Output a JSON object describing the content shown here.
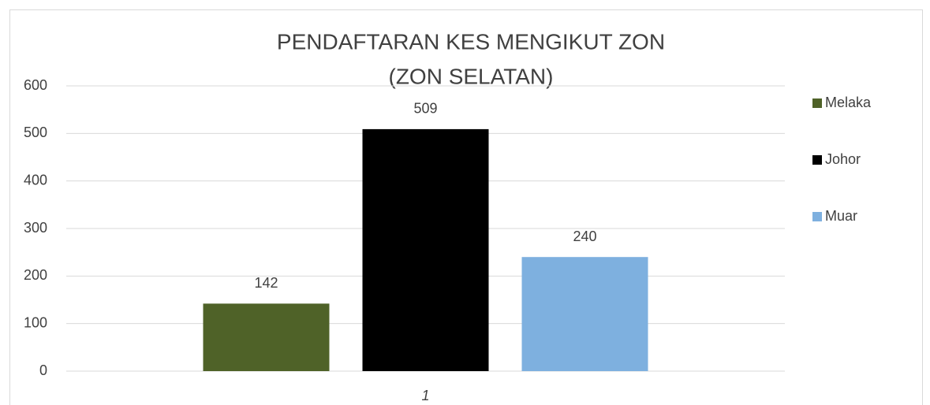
{
  "chart_data": {
    "type": "bar",
    "title": [
      "PENDAFTARAN KES MENGIKUT ZON",
      "(ZON SELATAN)"
    ],
    "categories": [
      "1"
    ],
    "series": [
      {
        "name": "Melaka",
        "color": "#4f6228",
        "values": [
          142
        ]
      },
      {
        "name": "Johor",
        "color": "#000000",
        "values": [
          509
        ]
      },
      {
        "name": "Muar",
        "color": "#7eb0df",
        "values": [
          240
        ]
      }
    ],
    "ylim": [
      0,
      600
    ],
    "yticks": [
      0,
      100,
      200,
      300,
      400,
      500,
      600
    ],
    "grid": true,
    "legend": "right"
  }
}
